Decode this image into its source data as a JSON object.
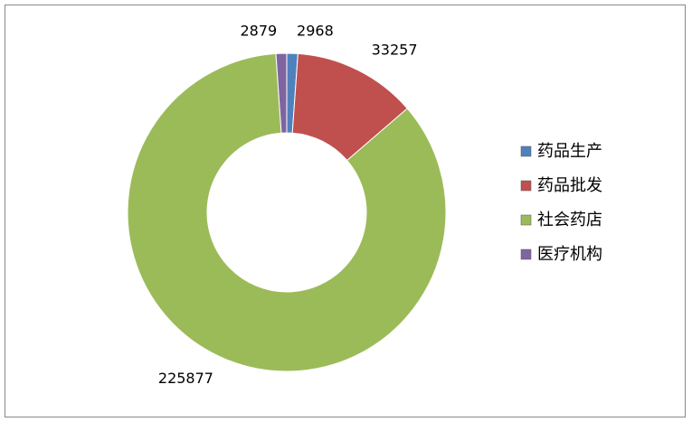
{
  "chart_data": {
    "type": "donut",
    "categories": [
      "药品生产",
      "药品批发",
      "社会药店",
      "医疗机构"
    ],
    "values": [
      2968,
      33257,
      225877,
      2879
    ],
    "colors": [
      "#4f81bd",
      "#c0504d",
      "#9bbb59",
      "#8064a2"
    ],
    "legend": "right"
  }
}
